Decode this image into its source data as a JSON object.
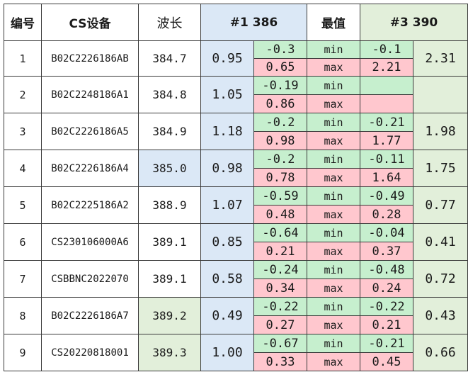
{
  "headers": {
    "id": "编号",
    "device": "CS设备",
    "wavelength": "波长",
    "ch1": "#1 386",
    "extreme": "最值",
    "ch3": "#3 390"
  },
  "labels": {
    "min": "min",
    "max": "max"
  },
  "colors": {
    "blue": "#dbe8f6",
    "green": "#e2efda",
    "min_bg": "#c6efce",
    "max_bg": "#ffc7ce"
  },
  "rows": [
    {
      "id": "1",
      "device": "B02C2226186AB",
      "wavelength": "384.7",
      "wavelength_hl": "",
      "ch1": "0.95",
      "ch1_min": "-0.3",
      "ch1_max": "0.65",
      "ch3_min": "-0.1",
      "ch3_max": "2.21",
      "ch3": "2.31"
    },
    {
      "id": "2",
      "device": "B02C2248186A1",
      "wavelength": "384.8",
      "wavelength_hl": "",
      "ch1": "1.05",
      "ch1_min": "-0.19",
      "ch1_max": "0.86",
      "ch3_min": "",
      "ch3_max": "",
      "ch3": ""
    },
    {
      "id": "3",
      "device": "B02C2226186A5",
      "wavelength": "384.9",
      "wavelength_hl": "",
      "ch1": "1.18",
      "ch1_min": "-0.2",
      "ch1_max": "0.98",
      "ch3_min": "-0.21",
      "ch3_max": "1.77",
      "ch3": "1.98"
    },
    {
      "id": "4",
      "device": "B02C2226186A4",
      "wavelength": "385.0",
      "wavelength_hl": "blue",
      "ch1": "0.98",
      "ch1_min": "-0.2",
      "ch1_max": "0.78",
      "ch3_min": "-0.11",
      "ch3_max": "1.64",
      "ch3": "1.75"
    },
    {
      "id": "5",
      "device": "B02C2225186A2",
      "wavelength": "388.9",
      "wavelength_hl": "",
      "ch1": "1.07",
      "ch1_min": "-0.59",
      "ch1_max": "0.48",
      "ch3_min": "-0.49",
      "ch3_max": "0.28",
      "ch3": "0.77"
    },
    {
      "id": "6",
      "device": "CS230106000A6",
      "wavelength": "389.1",
      "wavelength_hl": "",
      "ch1": "0.85",
      "ch1_min": "-0.64",
      "ch1_max": "0.21",
      "ch3_min": "-0.04",
      "ch3_max": "0.37",
      "ch3": "0.41"
    },
    {
      "id": "7",
      "device": "CSBBNC2022070",
      "wavelength": "389.1",
      "wavelength_hl": "",
      "ch1": "0.58",
      "ch1_min": "-0.24",
      "ch1_max": "0.34",
      "ch3_min": "-0.48",
      "ch3_max": "0.24",
      "ch3": "0.72"
    },
    {
      "id": "8",
      "device": "B02C2226186A7",
      "wavelength": "389.2",
      "wavelength_hl": "green",
      "ch1": "0.49",
      "ch1_min": "-0.22",
      "ch1_max": "0.27",
      "ch3_min": "-0.22",
      "ch3_max": "0.21",
      "ch3": "0.43"
    },
    {
      "id": "9",
      "device": "CS20220818001",
      "wavelength": "389.3",
      "wavelength_hl": "green",
      "ch1": "1.00",
      "ch1_min": "-0.67",
      "ch1_max": "0.33",
      "ch3_min": "-0.21",
      "ch3_max": "0.45",
      "ch3": "0.66"
    }
  ]
}
